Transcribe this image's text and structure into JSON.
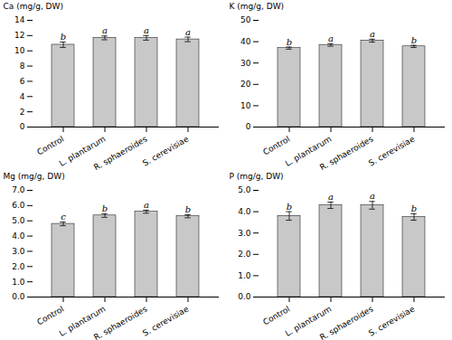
{
  "chart_data": [
    {
      "type": "bar",
      "ylabel": "Ca (mg/g, DW)",
      "categories": [
        "Control",
        "L. plantarum",
        "R. sphaeroides",
        "S. cerevisiae"
      ],
      "values": [
        10.8,
        11.7,
        11.7,
        11.5
      ],
      "errors": [
        0.35,
        0.25,
        0.3,
        0.3
      ],
      "letters": [
        "b",
        "a",
        "a",
        "a"
      ],
      "ylim": [
        0,
        14
      ],
      "yticks": [
        0,
        2,
        4,
        6,
        8,
        10,
        12,
        14
      ],
      "color": "#c8c8c8"
    },
    {
      "type": "bar",
      "ylabel": "K (mg/g, DW)",
      "categories": [
        "Control",
        "L. plantarum",
        "R. sphaeroides",
        "S. cerevisiae"
      ],
      "values": [
        37.0,
        38.5,
        40.5,
        37.8
      ],
      "errors": [
        0.5,
        0.6,
        0.7,
        0.5
      ],
      "letters": [
        "b",
        "a",
        "a",
        "b"
      ],
      "ylim": [
        0,
        50
      ],
      "yticks": [
        0,
        10,
        20,
        30,
        40,
        50
      ],
      "color": "#c8c8c8"
    },
    {
      "type": "bar",
      "ylabel": "Mg (mg/g, DW)",
      "categories": [
        "Control",
        "L. plantarum",
        "R. sphaeroides",
        "S. cerevisiae"
      ],
      "values": [
        4.8,
        5.35,
        5.6,
        5.3
      ],
      "errors": [
        0.12,
        0.12,
        0.1,
        0.1
      ],
      "letters": [
        "c",
        "b",
        "a",
        "b"
      ],
      "ylim": [
        0,
        7
      ],
      "yticks": [
        0,
        1,
        2,
        3,
        4,
        5,
        6,
        7
      ],
      "color": "#c8c8c8"
    },
    {
      "type": "bar",
      "ylabel": "P (mg/g, DW)",
      "categories": [
        "Control",
        "L. plantarum",
        "R. sphaeroides",
        "S. cerevisiae"
      ],
      "values": [
        3.8,
        4.3,
        4.3,
        3.75
      ],
      "errors": [
        0.2,
        0.15,
        0.18,
        0.15
      ],
      "letters": [
        "b",
        "a",
        "a",
        "b"
      ],
      "ylim": [
        0,
        5
      ],
      "yticks": [
        0,
        1,
        2,
        3,
        4,
        5
      ],
      "color": "#c8c8c8"
    }
  ]
}
